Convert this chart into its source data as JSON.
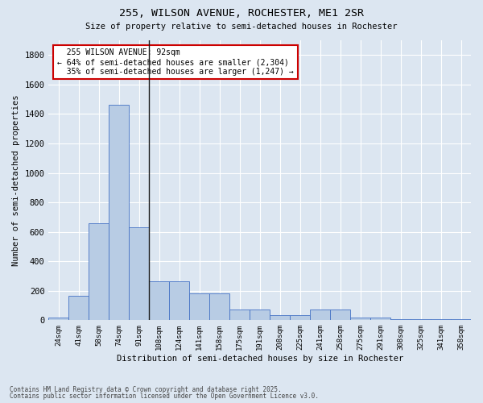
{
  "title_line1": "255, WILSON AVENUE, ROCHESTER, ME1 2SR",
  "title_line2": "Size of property relative to semi-detached houses in Rochester",
  "xlabel": "Distribution of semi-detached houses by size in Rochester",
  "ylabel": "Number of semi-detached properties",
  "categories": [
    "24sqm",
    "41sqm",
    "58sqm",
    "74sqm",
    "91sqm",
    "108sqm",
    "124sqm",
    "141sqm",
    "158sqm",
    "175sqm",
    "191sqm",
    "208sqm",
    "225sqm",
    "241sqm",
    "258sqm",
    "275sqm",
    "291sqm",
    "308sqm",
    "325sqm",
    "341sqm",
    "358sqm"
  ],
  "values": [
    20,
    165,
    660,
    1460,
    630,
    265,
    265,
    185,
    185,
    75,
    75,
    35,
    35,
    75,
    75,
    20,
    20,
    5,
    5,
    5,
    5
  ],
  "bar_color": "#b8cce4",
  "bar_edge_color": "#4472c4",
  "property_bin_index": 4,
  "property_label": "255 WILSON AVENUE: 92sqm",
  "pct_smaller": 64,
  "n_smaller": 2304,
  "pct_larger": 35,
  "n_larger": 1247,
  "annotation_box_color": "#ffffff",
  "annotation_box_edge_color": "#cc0000",
  "vline_color": "#1a1a1a",
  "ylim": [
    0,
    1900
  ],
  "yticks": [
    0,
    200,
    400,
    600,
    800,
    1000,
    1200,
    1400,
    1600,
    1800
  ],
  "background_color": "#dce6f1",
  "grid_color": "#ffffff",
  "footer_line1": "Contains HM Land Registry data © Crown copyright and database right 2025.",
  "footer_line2": "Contains public sector information licensed under the Open Government Licence v3.0."
}
